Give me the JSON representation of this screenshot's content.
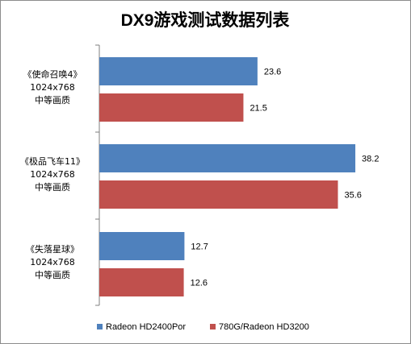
{
  "chart_data": {
    "type": "bar",
    "orientation": "horizontal",
    "title": "DX9游戏测试数据列表",
    "categories": [
      {
        "name": "《使命召唤4》",
        "resolution": "1024x768",
        "quality": "中等画质"
      },
      {
        "name": "《极品飞车11》",
        "resolution": "1024x768",
        "quality": "中等画质"
      },
      {
        "name": "《失落星球》",
        "resolution": "1024x768",
        "quality": "中等画质"
      }
    ],
    "series": [
      {
        "name": "Radeon HD2400Por",
        "color": "#4f81bd",
        "values": [
          23.6,
          38.2,
          12.7
        ]
      },
      {
        "name": "780G/Radeon HD3200",
        "color": "#c0504d",
        "values": [
          21.5,
          35.6,
          12.6
        ]
      }
    ],
    "xlim": [
      0,
      40
    ],
    "grid": false,
    "legend_position": "bottom",
    "data_labels": true
  }
}
